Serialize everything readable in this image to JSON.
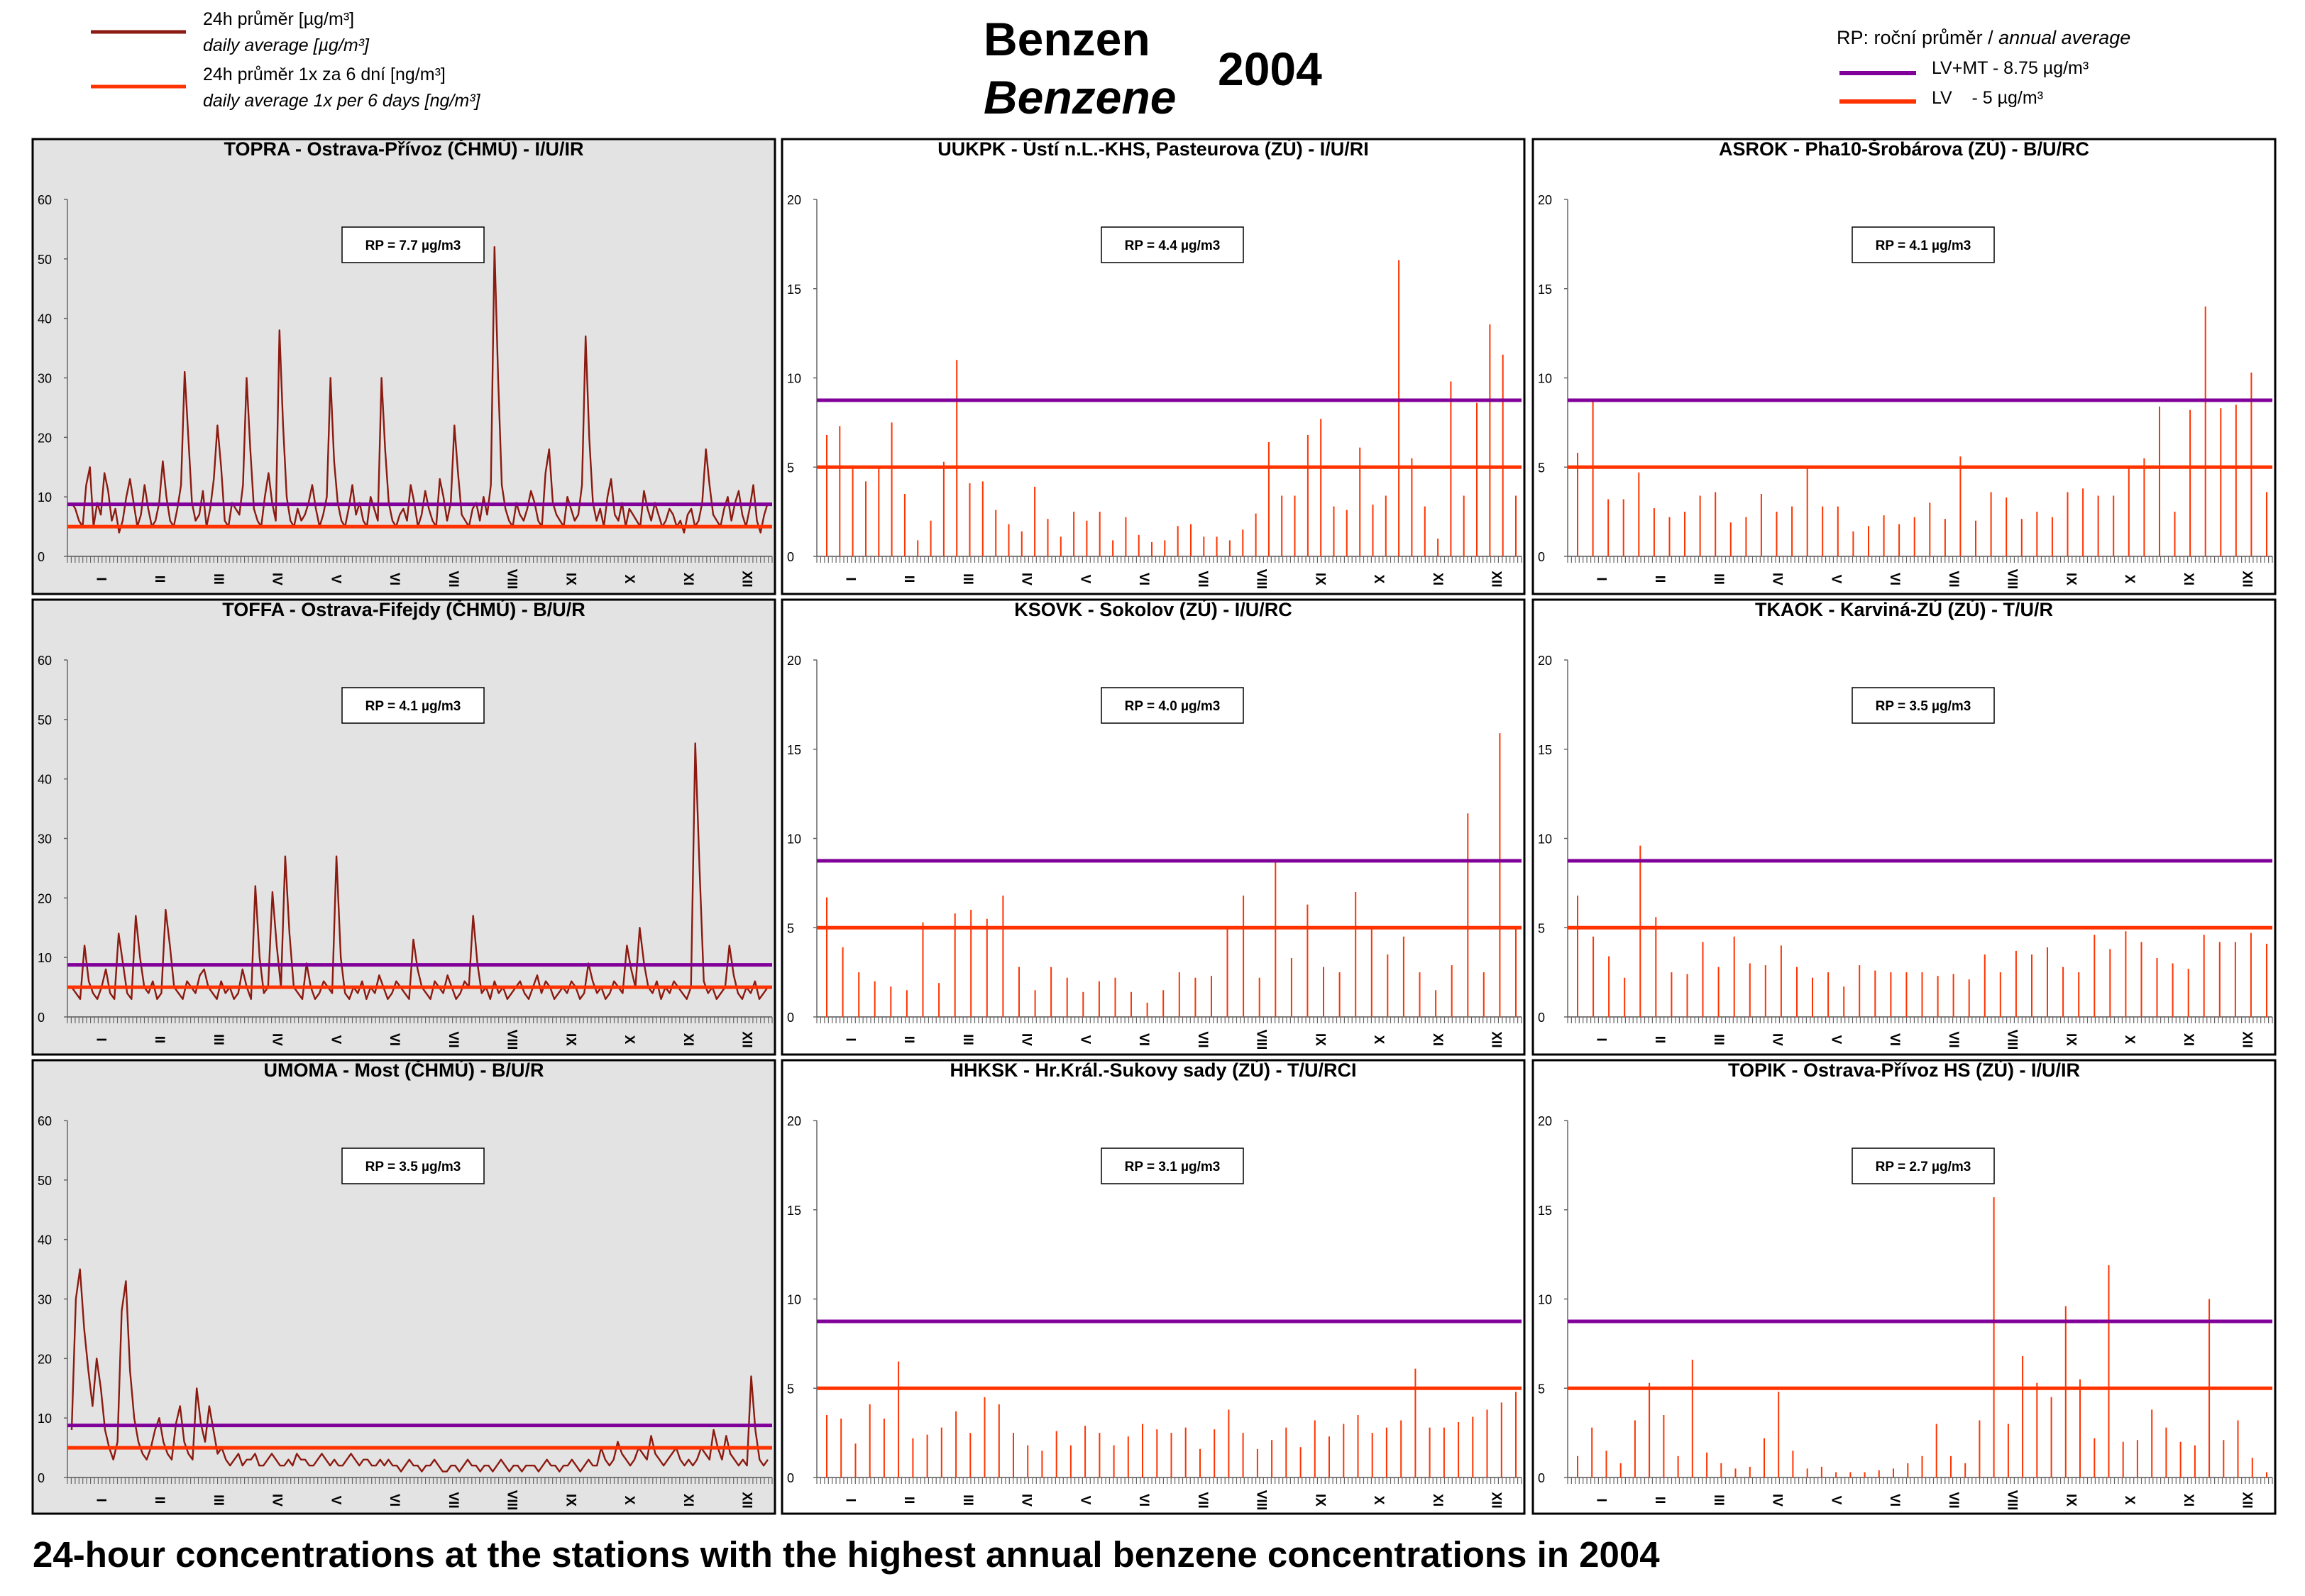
{
  "header": {
    "title_cz": "Benzen",
    "title_en": "Benzene",
    "year": "2004"
  },
  "legend_left": [
    {
      "color": "#8b1a10",
      "label_cz": "24h průměr [µg/m³]",
      "label_en": "daily average [µg/m³]"
    },
    {
      "color": "#ff3300",
      "label_cz": "24h průměr 1x za 6 dní [ng/m³]",
      "label_en": "daily average 1x per 6 days [ng/m³]"
    }
  ],
  "legend_right": {
    "title_cz": "RP: roční průměr",
    "title_sep": " / ",
    "title_en": "annual average",
    "items": [
      {
        "color": "#800099",
        "label": "LV+MT - 8.75 µg/m³"
      },
      {
        "color": "#ff3300",
        "label": "LV    - 5 µg/m³"
      }
    ]
  },
  "footer": "24-hour concentrations at the stations with the highest annual benzene concentrations in 2004",
  "colors": {
    "daily": "#8b1a10",
    "six_day": "#ff3300",
    "lvmt": "#800099",
    "lv": "#ff3300",
    "panel_gray": "#e3e3e3"
  },
  "chart_data": [
    {
      "type": "line",
      "title": "TOPRA - Ostrava-Přívoz (ČHMÚ) - I/U/IR",
      "annual": "RP = 7.7 µg/m3",
      "ylim": [
        0,
        60
      ],
      "yticks": [
        0,
        10,
        20,
        30,
        40,
        50,
        60
      ],
      "months": [
        "I",
        "II",
        "III",
        "IV",
        "V",
        "VI",
        "VII",
        "VIII",
        "IX",
        "X",
        "XI",
        "XII"
      ],
      "series_type": "daily",
      "limits": [
        8.75,
        5
      ],
      "grid": false,
      "background": "gray",
      "values": [
        9,
        8,
        6,
        5,
        12,
        15,
        5,
        9,
        7,
        14,
        11,
        6,
        8,
        4,
        6,
        10,
        13,
        9,
        5,
        7,
        12,
        8,
        5,
        6,
        9,
        16,
        10,
        6,
        5,
        8,
        12,
        31,
        20,
        9,
        6,
        7,
        11,
        5,
        8,
        13,
        22,
        15,
        6,
        5,
        9,
        8,
        7,
        12,
        30,
        18,
        8,
        6,
        5,
        10,
        14,
        9,
        6,
        38,
        22,
        10,
        6,
        5,
        8,
        6,
        7,
        9,
        12,
        8,
        5,
        7,
        10,
        30,
        16,
        9,
        6,
        5,
        8,
        12,
        7,
        9,
        6,
        5,
        10,
        8,
        6,
        30,
        18,
        9,
        6,
        5,
        7,
        8,
        6,
        12,
        9,
        5,
        7,
        11,
        8,
        6,
        5,
        13,
        10,
        6,
        9,
        22,
        14,
        7,
        6,
        5,
        8,
        9,
        6,
        10,
        7,
        12,
        52,
        30,
        12,
        8,
        6,
        5,
        9,
        7,
        6,
        8,
        11,
        9,
        6,
        5,
        14,
        18,
        9,
        7,
        6,
        5,
        10,
        8,
        6,
        7,
        12,
        37,
        20,
        9,
        6,
        8,
        5,
        10,
        13,
        7,
        6,
        9,
        5,
        8,
        7,
        6,
        5,
        11,
        8,
        6,
        9,
        7,
        5,
        6,
        8,
        7,
        5,
        6,
        4,
        7,
        8,
        5,
        6,
        9,
        18,
        12,
        7,
        6,
        5,
        8,
        10,
        6,
        9,
        11,
        7,
        5,
        8,
        12,
        6,
        4,
        7,
        9
      ]
    },
    {
      "type": "bar",
      "title": "UUKPK - Ústí n.L.-KHS, Pasteurova (ZÚ) - I/U/RI",
      "annual": "RP = 4.4 µg/m3",
      "ylim": [
        0,
        20
      ],
      "yticks": [
        0,
        5,
        10,
        15,
        20
      ],
      "months": [
        "I",
        "II",
        "III",
        "IV",
        "V",
        "VI",
        "VII",
        "VIII",
        "IX",
        "X",
        "XI",
        "XII"
      ],
      "series_type": "six_day",
      "limits": [
        8.75,
        5
      ],
      "grid": false,
      "background": "white",
      "values": [
        6.8,
        7.3,
        5.1,
        4.2,
        5,
        7.5,
        3.5,
        0.9,
        2,
        5.3,
        11,
        4.1,
        4.2,
        2.6,
        1.8,
        1.4,
        3.9,
        2.1,
        1.1,
        2.5,
        2,
        2.5,
        0.9,
        2.2,
        1.2,
        0.8,
        0.9,
        1.7,
        1.8,
        1.1,
        1.1,
        0.9,
        1.5,
        2.4,
        6.4,
        3.4,
        3.4,
        6.8,
        7.7,
        2.8,
        2.6,
        6.1,
        2.9,
        3.4,
        16.6,
        5.5,
        2.8,
        1,
        9.8,
        3.4,
        8.6,
        13,
        11.3,
        3.4
      ]
    },
    {
      "type": "bar",
      "title": "ASROK - Pha10-Šrobárova (ZÚ) - B/U/RC",
      "annual": "RP = 4.1 µg/m3",
      "ylim": [
        0,
        20
      ],
      "yticks": [
        0,
        5,
        10,
        15,
        20
      ],
      "months": [
        "I",
        "II",
        "III",
        "IV",
        "V",
        "VI",
        "VII",
        "VIII",
        "IX",
        "X",
        "XI",
        "XII"
      ],
      "series_type": "six_day",
      "limits": [
        8.75,
        5
      ],
      "grid": false,
      "background": "white",
      "values": [
        5.8,
        8.8,
        3.2,
        3.2,
        4.7,
        2.7,
        2.2,
        2.5,
        3.4,
        3.6,
        1.9,
        2.2,
        3.5,
        2.5,
        2.8,
        5,
        2.8,
        2.8,
        1.4,
        1.7,
        2.3,
        1.8,
        2.2,
        3,
        2.1,
        5.6,
        2,
        3.6,
        3.3,
        2.1,
        2.5,
        2.2,
        3.6,
        3.8,
        3.4,
        3.4,
        5,
        5.5,
        8.4,
        2.5,
        8.2,
        14,
        8.3,
        8.5,
        10.3,
        3.6
      ]
    },
    {
      "type": "line",
      "title": "TOFFA - Ostrava-Fifejdy (ČHMÚ) - B/U/R",
      "annual": "RP = 4.1 µg/m3",
      "ylim": [
        0,
        60
      ],
      "yticks": [
        0,
        10,
        20,
        30,
        40,
        50,
        60
      ],
      "months": [
        "I",
        "II",
        "III",
        "IV",
        "V",
        "VI",
        "VII",
        "VIII",
        "IX",
        "X",
        "XI",
        "XII"
      ],
      "series_type": "daily",
      "limits": [
        8.75,
        5
      ],
      "grid": false,
      "background": "gray",
      "values": [
        5,
        4,
        3,
        12,
        6,
        4,
        3,
        5,
        8,
        4,
        3,
        14,
        9,
        4,
        3,
        17,
        10,
        5,
        4,
        6,
        3,
        4,
        18,
        12,
        5,
        4,
        3,
        6,
        5,
        4,
        7,
        8,
        5,
        4,
        3,
        6,
        4,
        5,
        3,
        4,
        8,
        5,
        3,
        22,
        10,
        4,
        5,
        21,
        12,
        5,
        27,
        14,
        5,
        4,
        3,
        9,
        5,
        3,
        4,
        6,
        5,
        4,
        27,
        10,
        4,
        3,
        5,
        4,
        6,
        3,
        5,
        4,
        7,
        5,
        3,
        4,
        6,
        5,
        4,
        3,
        13,
        8,
        5,
        4,
        3,
        6,
        5,
        4,
        7,
        5,
        3,
        4,
        6,
        5,
        17,
        9,
        4,
        5,
        3,
        6,
        4,
        5,
        3,
        4,
        5,
        6,
        4,
        3,
        5,
        7,
        4,
        6,
        5,
        3,
        4,
        5,
        4,
        6,
        5,
        3,
        4,
        9,
        6,
        4,
        5,
        3,
        4,
        6,
        5,
        4,
        12,
        8,
        5,
        15,
        9,
        5,
        4,
        6,
        3,
        5,
        4,
        6,
        5,
        4,
        3,
        5,
        46,
        25,
        6,
        4,
        5,
        3,
        4,
        5,
        12,
        7,
        4,
        3,
        5,
        4,
        6,
        3,
        4,
        5
      ]
    },
    {
      "type": "bar",
      "title": "KSOVK - Sokolov (ZÚ) - I/U/RC",
      "annual": "RP = 4.0 µg/m3",
      "ylim": [
        0,
        20
      ],
      "yticks": [
        0,
        5,
        10,
        15,
        20
      ],
      "months": [
        "I",
        "II",
        "III",
        "IV",
        "V",
        "VI",
        "VII",
        "VIII",
        "IX",
        "X",
        "XI",
        "XII"
      ],
      "series_type": "six_day",
      "limits": [
        8.75,
        5
      ],
      "grid": false,
      "background": "white",
      "values": [
        6.7,
        3.9,
        2.5,
        2,
        1.7,
        1.5,
        5.3,
        1.9,
        5.8,
        6,
        5.5,
        6.8,
        2.8,
        1.5,
        2.8,
        2.2,
        1.4,
        2,
        2.2,
        1.4,
        0.8,
        1.5,
        2.5,
        2.2,
        2.3,
        5,
        6.8,
        2.2,
        8.8,
        3.3,
        6.3,
        2.8,
        2.5,
        7,
        5,
        3.5,
        4.5,
        2.5,
        1.5,
        2.9,
        11.4,
        2.5,
        15.9,
        5
      ]
    },
    {
      "type": "bar",
      "title": "TKAOK - Karviná-ZÚ (ZÚ) - T/U/R",
      "annual": "RP = 3.5 µg/m3",
      "ylim": [
        0,
        20
      ],
      "yticks": [
        0,
        5,
        10,
        15,
        20
      ],
      "months": [
        "I",
        "II",
        "III",
        "IV",
        "V",
        "VI",
        "VII",
        "VIII",
        "IX",
        "X",
        "XI",
        "XII"
      ],
      "series_type": "six_day",
      "limits": [
        8.75,
        5
      ],
      "grid": false,
      "background": "white",
      "values": [
        6.8,
        4.5,
        3.4,
        2.2,
        9.6,
        5.6,
        2.5,
        2.4,
        4.2,
        2.8,
        4.5,
        3,
        2.9,
        4,
        2.8,
        2.2,
        2.5,
        1.7,
        2.9,
        2.6,
        2.5,
        2.5,
        2.5,
        2.3,
        2.4,
        2.1,
        3.5,
        2.5,
        3.7,
        3.5,
        3.9,
        2.8,
        2.5,
        4.6,
        3.8,
        4.8,
        4.2,
        3.3,
        3,
        2.7,
        4.6,
        4.2,
        4.2,
        4.7,
        4.1
      ]
    },
    {
      "type": "line",
      "title": "UMOMA - Most (ČHMÚ) - B/U/R",
      "annual": "RP = 3.5 µg/m3",
      "ylim": [
        0,
        60
      ],
      "yticks": [
        0,
        10,
        20,
        30,
        40,
        50,
        60
      ],
      "months": [
        "I",
        "II",
        "III",
        "IV",
        "V",
        "VI",
        "VII",
        "VIII",
        "IX",
        "X",
        "XI",
        "XII"
      ],
      "series_type": "daily",
      "limits": [
        8.75,
        5
      ],
      "grid": false,
      "background": "gray",
      "values": [
        8,
        30,
        35,
        25,
        18,
        12,
        20,
        15,
        8,
        5,
        3,
        6,
        28,
        33,
        18,
        10,
        6,
        4,
        3,
        5,
        8,
        10,
        6,
        4,
        3,
        9,
        12,
        6,
        4,
        3,
        15,
        9,
        6,
        12,
        8,
        4,
        5,
        3,
        2,
        3,
        4,
        2,
        3,
        3,
        4,
        2,
        2,
        3,
        4,
        3,
        2,
        2,
        3,
        2,
        4,
        3,
        3,
        2,
        2,
        3,
        4,
        3,
        2,
        3,
        2,
        2,
        3,
        4,
        3,
        2,
        3,
        3,
        2,
        2,
        3,
        2,
        3,
        2,
        2,
        1,
        2,
        3,
        2,
        2,
        1,
        2,
        2,
        3,
        2,
        1,
        1,
        2,
        2,
        1,
        2,
        3,
        2,
        2,
        1,
        2,
        2,
        1,
        2,
        3,
        2,
        1,
        2,
        2,
        1,
        2,
        2,
        2,
        1,
        2,
        3,
        2,
        2,
        1,
        2,
        2,
        3,
        2,
        1,
        2,
        3,
        2,
        2,
        5,
        3,
        2,
        3,
        6,
        4,
        3,
        2,
        3,
        5,
        4,
        3,
        7,
        4,
        3,
        2,
        3,
        4,
        5,
        3,
        2,
        3,
        2,
        3,
        5,
        4,
        3,
        8,
        5,
        3,
        7,
        4,
        3,
        2,
        3,
        2,
        17,
        8,
        3,
        2,
        3
      ]
    },
    {
      "type": "bar",
      "title": "HHKSK - Hr.Král.-Sukovy sady (ZÚ) - T/U/RCI",
      "annual": "RP = 3.1 µg/m3",
      "ylim": [
        0,
        20
      ],
      "yticks": [
        0,
        5,
        10,
        15,
        20
      ],
      "months": [
        "I",
        "II",
        "III",
        "IV",
        "V",
        "VI",
        "VII",
        "VIII",
        "IX",
        "X",
        "XI",
        "XII"
      ],
      "series_type": "six_day",
      "limits": [
        8.75,
        5
      ],
      "grid": false,
      "background": "white",
      "values": [
        3.5,
        3.3,
        1.9,
        4.1,
        3.3,
        6.5,
        2.2,
        2.4,
        2.8,
        3.7,
        2.5,
        4.5,
        4.1,
        2.5,
        1.8,
        1.5,
        2.6,
        1.8,
        2.9,
        2.5,
        1.8,
        2.3,
        3,
        2.7,
        2.5,
        2.8,
        1.6,
        2.7,
        3.8,
        2.5,
        1.6,
        2.1,
        2.8,
        1.7,
        3.2,
        2.3,
        3,
        3.5,
        2.5,
        2.8,
        3.2,
        6.1,
        2.8,
        2.8,
        3.1,
        3.4,
        3.8,
        4.2,
        4.8
      ]
    },
    {
      "type": "bar",
      "title": "TOPIK - Ostrava-Přívoz HS (ZÚ) - I/U/IR",
      "annual": "RP = 2.7 µg/m3",
      "ylim": [
        0,
        20
      ],
      "yticks": [
        0,
        5,
        10,
        15,
        20
      ],
      "months": [
        "I",
        "II",
        "III",
        "IV",
        "V",
        "VI",
        "VII",
        "VIII",
        "IX",
        "X",
        "XI",
        "XII"
      ],
      "series_type": "six_day",
      "limits": [
        8.75,
        5
      ],
      "grid": false,
      "background": "white",
      "values": [
        1.2,
        2.8,
        1.5,
        0.8,
        3.2,
        5.3,
        3.5,
        1.2,
        6.6,
        1.4,
        0.8,
        0.5,
        0.6,
        2.2,
        4.8,
        1.5,
        0.5,
        0.6,
        0.3,
        0.3,
        0.3,
        0.4,
        0.5,
        0.8,
        1.2,
        3,
        1.2,
        0.8,
        3.2,
        15.7,
        3,
        6.8,
        5.3,
        4.5,
        9.6,
        5.5,
        2.2,
        11.9,
        2,
        2.1,
        3.8,
        2.8,
        2,
        1.8,
        10,
        2.1,
        3.2,
        1.1,
        0.3
      ]
    }
  ]
}
